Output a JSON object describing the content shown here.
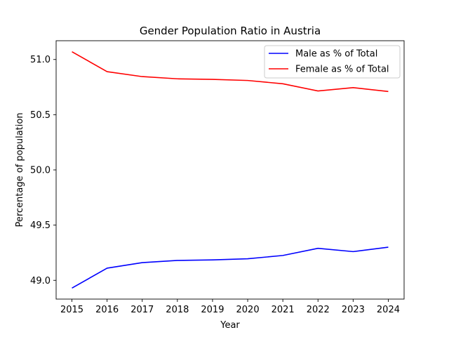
{
  "chart_data": {
    "type": "line",
    "title": "Gender Population Ratio in Austria",
    "xlabel": "Year",
    "ylabel": "Percentage of population",
    "x": [
      2015,
      2016,
      2017,
      2018,
      2019,
      2020,
      2021,
      2022,
      2023,
      2024
    ],
    "xlim": [
      2014.55,
      2024.45
    ],
    "ylim": [
      48.83,
      51.17
    ],
    "yticks": [
      49.0,
      49.5,
      50.0,
      50.5,
      51.0
    ],
    "ytick_labels": [
      "49.0",
      "49.5",
      "50.0",
      "50.5",
      "51.0"
    ],
    "xtick_labels": [
      "2015",
      "2016",
      "2017",
      "2018",
      "2019",
      "2020",
      "2021",
      "2022",
      "2023",
      "2024"
    ],
    "grid": false,
    "legend_position": "top-right",
    "series": [
      {
        "name": "Male as % of Total",
        "color": "#0000ff",
        "values": [
          48.93,
          49.11,
          49.16,
          49.18,
          49.185,
          49.195,
          49.225,
          49.29,
          49.26,
          49.3
        ]
      },
      {
        "name": "Female as % of Total",
        "color": "#ff0000",
        "values": [
          51.07,
          50.89,
          50.845,
          50.825,
          50.82,
          50.81,
          50.78,
          50.715,
          50.745,
          50.71
        ]
      }
    ]
  }
}
